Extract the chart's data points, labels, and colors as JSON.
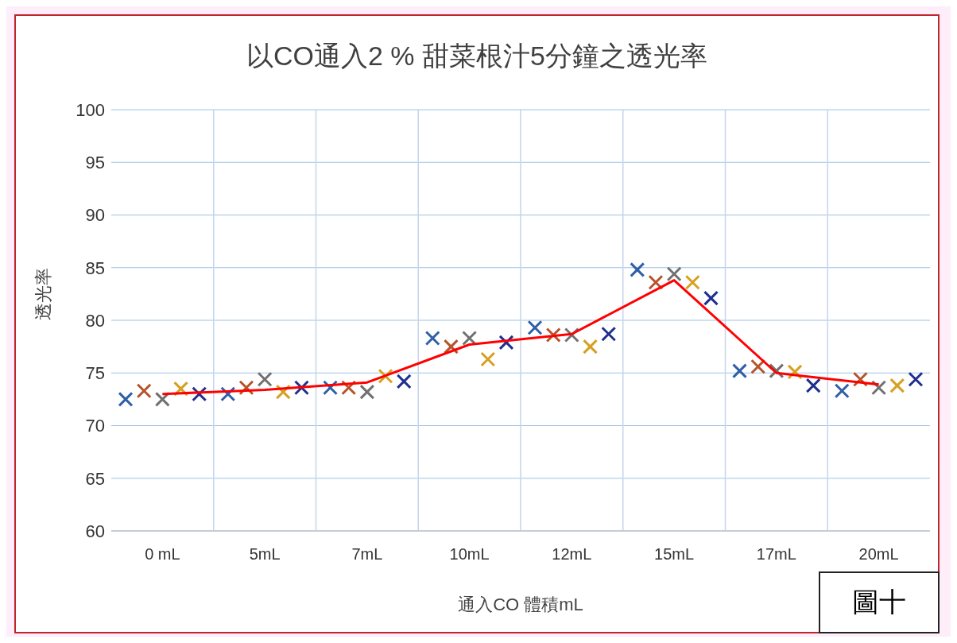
{
  "chart_data": {
    "type": "scatter",
    "title": "以CO通入2 % 甜菜根汁5分鐘之透光率",
    "xlabel": "通入CO 體積mL",
    "ylabel": "透光率",
    "marker": "cross",
    "grid": true,
    "legend": false,
    "categories": [
      "0 mL",
      "5mL",
      "7mL",
      "10mL",
      "12mL",
      "15mL",
      "17mL",
      "20mL"
    ],
    "ylim": [
      60,
      100
    ],
    "yticks": [
      60,
      65,
      70,
      75,
      80,
      85,
      90,
      95,
      100
    ],
    "series": [
      {
        "color": "#2e5fa8",
        "values": [
          72.5,
          73.0,
          73.6,
          78.3,
          79.3,
          84.8,
          75.2,
          73.3
        ]
      },
      {
        "color": "#b5532a",
        "values": [
          73.3,
          73.6,
          73.6,
          77.5,
          78.6,
          83.6,
          75.6,
          74.4
        ]
      },
      {
        "color": "#707070",
        "values": [
          72.5,
          74.4,
          73.2,
          78.3,
          78.6,
          84.4,
          75.2,
          73.6
        ]
      },
      {
        "color": "#d6a020",
        "values": [
          73.5,
          73.2,
          74.7,
          76.3,
          77.5,
          83.6,
          75.1,
          73.8
        ]
      },
      {
        "color": "#1f2f8f",
        "values": [
          73.0,
          73.6,
          74.2,
          77.9,
          78.7,
          82.1,
          73.8,
          74.4
        ]
      },
      {
        "type": "line",
        "marker": "none",
        "color": "#ff0000",
        "values": [
          73.0,
          73.4,
          74.1,
          77.7,
          78.7,
          83.8,
          75.0,
          73.9
        ]
      }
    ],
    "annotations": [
      "圖十"
    ]
  }
}
